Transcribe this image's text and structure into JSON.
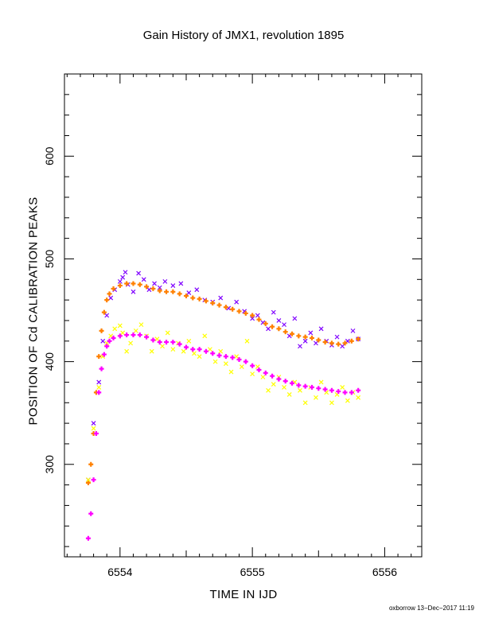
{
  "chart_data": {
    "type": "scatter",
    "title": "Gain History of JMX1, revolution 1895",
    "xlabel": "TIME IN IJD",
    "ylabel": "POSITION OF Cd CALIBRATION PEAKS",
    "xlim": [
      6553.58,
      6556.28
    ],
    "ylim": [
      210,
      680
    ],
    "x_ticks": [
      6554,
      6555,
      6556
    ],
    "y_ticks": [
      300,
      400,
      500,
      600
    ],
    "grid": false,
    "series": [
      {
        "color": "#7f00ff",
        "marker": "x",
        "points": [
          [
            6553.76,
            285
          ],
          [
            6553.8,
            340
          ],
          [
            6553.84,
            380
          ],
          [
            6553.87,
            420
          ],
          [
            6553.9,
            445
          ],
          [
            6553.93,
            462
          ],
          [
            6553.96,
            470
          ],
          [
            6554.0,
            478
          ],
          [
            6554.02,
            482
          ],
          [
            6554.04,
            487
          ],
          [
            6554.06,
            475
          ],
          [
            6554.1,
            468
          ],
          [
            6554.14,
            486
          ],
          [
            6554.18,
            480
          ],
          [
            6554.22,
            470
          ],
          [
            6554.26,
            476
          ],
          [
            6554.3,
            472
          ],
          [
            6554.34,
            478
          ],
          [
            6554.4,
            474
          ],
          [
            6554.46,
            476
          ],
          [
            6554.52,
            467
          ],
          [
            6554.58,
            470
          ],
          [
            6554.64,
            460
          ],
          [
            6554.7,
            458
          ],
          [
            6554.76,
            462
          ],
          [
            6554.82,
            452
          ],
          [
            6554.88,
            458
          ],
          [
            6554.94,
            449
          ],
          [
            6555.0,
            442
          ],
          [
            6555.04,
            445
          ],
          [
            6555.08,
            438
          ],
          [
            6555.12,
            432
          ],
          [
            6555.16,
            448
          ],
          [
            6555.2,
            440
          ],
          [
            6555.24,
            436
          ],
          [
            6555.28,
            425
          ],
          [
            6555.32,
            442
          ],
          [
            6555.36,
            415
          ],
          [
            6555.4,
            420
          ],
          [
            6555.44,
            428
          ],
          [
            6555.48,
            418
          ],
          [
            6555.52,
            432
          ],
          [
            6555.56,
            420
          ],
          [
            6555.6,
            416
          ],
          [
            6555.64,
            424
          ],
          [
            6555.68,
            415
          ],
          [
            6555.72,
            420
          ],
          [
            6555.76,
            430
          ],
          [
            6555.8,
            422
          ]
        ]
      },
      {
        "color": "#ff8000",
        "marker": "+",
        "points": [
          [
            6553.76,
            282
          ],
          [
            6553.78,
            300
          ],
          [
            6553.8,
            330
          ],
          [
            6553.82,
            370
          ],
          [
            6553.84,
            405
          ],
          [
            6553.86,
            430
          ],
          [
            6553.88,
            448
          ],
          [
            6553.9,
            460
          ],
          [
            6553.92,
            466
          ],
          [
            6553.95,
            471
          ],
          [
            6554.0,
            474
          ],
          [
            6554.05,
            476
          ],
          [
            6554.1,
            476
          ],
          [
            6554.15,
            475
          ],
          [
            6554.2,
            473
          ],
          [
            6554.25,
            471
          ],
          [
            6554.3,
            469
          ],
          [
            6554.35,
            468
          ],
          [
            6554.4,
            468
          ],
          [
            6554.45,
            466
          ],
          [
            6554.5,
            464
          ],
          [
            6554.55,
            462
          ],
          [
            6554.6,
            461
          ],
          [
            6554.65,
            459
          ],
          [
            6554.7,
            457
          ],
          [
            6554.75,
            455
          ],
          [
            6554.8,
            453
          ],
          [
            6554.85,
            451
          ],
          [
            6554.9,
            449
          ],
          [
            6554.95,
            447
          ],
          [
            6555.0,
            445
          ],
          [
            6555.05,
            441
          ],
          [
            6555.1,
            437
          ],
          [
            6555.15,
            434
          ],
          [
            6555.2,
            432
          ],
          [
            6555.25,
            429
          ],
          [
            6555.3,
            427
          ],
          [
            6555.35,
            425
          ],
          [
            6555.4,
            424
          ],
          [
            6555.45,
            423
          ],
          [
            6555.5,
            421
          ],
          [
            6555.55,
            419
          ],
          [
            6555.6,
            418
          ],
          [
            6555.65,
            417
          ],
          [
            6555.7,
            418
          ],
          [
            6555.75,
            420
          ],
          [
            6555.8,
            422
          ]
        ]
      },
      {
        "color": "#ffff00",
        "marker": "x",
        "points": [
          [
            6553.76,
            285
          ],
          [
            6553.8,
            335
          ],
          [
            6553.84,
            375
          ],
          [
            6553.87,
            405
          ],
          [
            6553.9,
            418
          ],
          [
            6553.93,
            425
          ],
          [
            6553.96,
            432
          ],
          [
            6554.0,
            435
          ],
          [
            6554.02,
            428
          ],
          [
            6554.05,
            410
          ],
          [
            6554.08,
            418
          ],
          [
            6554.12,
            430
          ],
          [
            6554.16,
            436
          ],
          [
            6554.2,
            425
          ],
          [
            6554.24,
            410
          ],
          [
            6554.28,
            422
          ],
          [
            6554.32,
            415
          ],
          [
            6554.36,
            428
          ],
          [
            6554.4,
            412
          ],
          [
            6554.44,
            418
          ],
          [
            6554.48,
            410
          ],
          [
            6554.52,
            420
          ],
          [
            6554.56,
            408
          ],
          [
            6554.6,
            405
          ],
          [
            6554.64,
            425
          ],
          [
            6554.68,
            412
          ],
          [
            6554.72,
            400
          ],
          [
            6554.76,
            410
          ],
          [
            6554.8,
            398
          ],
          [
            6554.84,
            390
          ],
          [
            6554.88,
            405
          ],
          [
            6554.92,
            395
          ],
          [
            6554.96,
            420
          ],
          [
            6555.0,
            388
          ],
          [
            6555.04,
            395
          ],
          [
            6555.08,
            385
          ],
          [
            6555.12,
            372
          ],
          [
            6555.16,
            378
          ],
          [
            6555.2,
            385
          ],
          [
            6555.24,
            375
          ],
          [
            6555.28,
            368
          ],
          [
            6555.32,
            380
          ],
          [
            6555.36,
            372
          ],
          [
            6555.4,
            360
          ],
          [
            6555.44,
            375
          ],
          [
            6555.48,
            365
          ],
          [
            6555.52,
            380
          ],
          [
            6555.56,
            370
          ],
          [
            6555.6,
            360
          ],
          [
            6555.64,
            368
          ],
          [
            6555.68,
            375
          ],
          [
            6555.72,
            362
          ],
          [
            6555.76,
            370
          ],
          [
            6555.8,
            365
          ]
        ]
      },
      {
        "color": "#ff00ff",
        "marker": "+",
        "points": [
          [
            6553.76,
            228
          ],
          [
            6553.78,
            252
          ],
          [
            6553.8,
            285
          ],
          [
            6553.82,
            330
          ],
          [
            6553.84,
            370
          ],
          [
            6553.86,
            393
          ],
          [
            6553.88,
            407
          ],
          [
            6553.9,
            415
          ],
          [
            6553.92,
            420
          ],
          [
            6553.95,
            423
          ],
          [
            6554.0,
            425
          ],
          [
            6554.05,
            426
          ],
          [
            6554.1,
            426
          ],
          [
            6554.15,
            426
          ],
          [
            6554.2,
            424
          ],
          [
            6554.25,
            421
          ],
          [
            6554.3,
            419
          ],
          [
            6554.35,
            419
          ],
          [
            6554.4,
            419
          ],
          [
            6554.45,
            417
          ],
          [
            6554.5,
            414
          ],
          [
            6554.55,
            412
          ],
          [
            6554.6,
            412
          ],
          [
            6554.65,
            410
          ],
          [
            6554.7,
            408
          ],
          [
            6554.75,
            406
          ],
          [
            6554.8,
            405
          ],
          [
            6554.85,
            404
          ],
          [
            6554.9,
            402
          ],
          [
            6554.95,
            400
          ],
          [
            6555.0,
            396
          ],
          [
            6555.05,
            392
          ],
          [
            6555.1,
            389
          ],
          [
            6555.15,
            386
          ],
          [
            6555.2,
            383
          ],
          [
            6555.25,
            381
          ],
          [
            6555.3,
            379
          ],
          [
            6555.35,
            377
          ],
          [
            6555.4,
            376
          ],
          [
            6555.45,
            375
          ],
          [
            6555.5,
            374
          ],
          [
            6555.55,
            373
          ],
          [
            6555.6,
            372
          ],
          [
            6555.65,
            371
          ],
          [
            6555.7,
            370
          ],
          [
            6555.75,
            370
          ],
          [
            6555.8,
            372
          ]
        ]
      }
    ]
  },
  "footer": {
    "credit": "oxborrow 13−Dec−2017 11:19"
  }
}
